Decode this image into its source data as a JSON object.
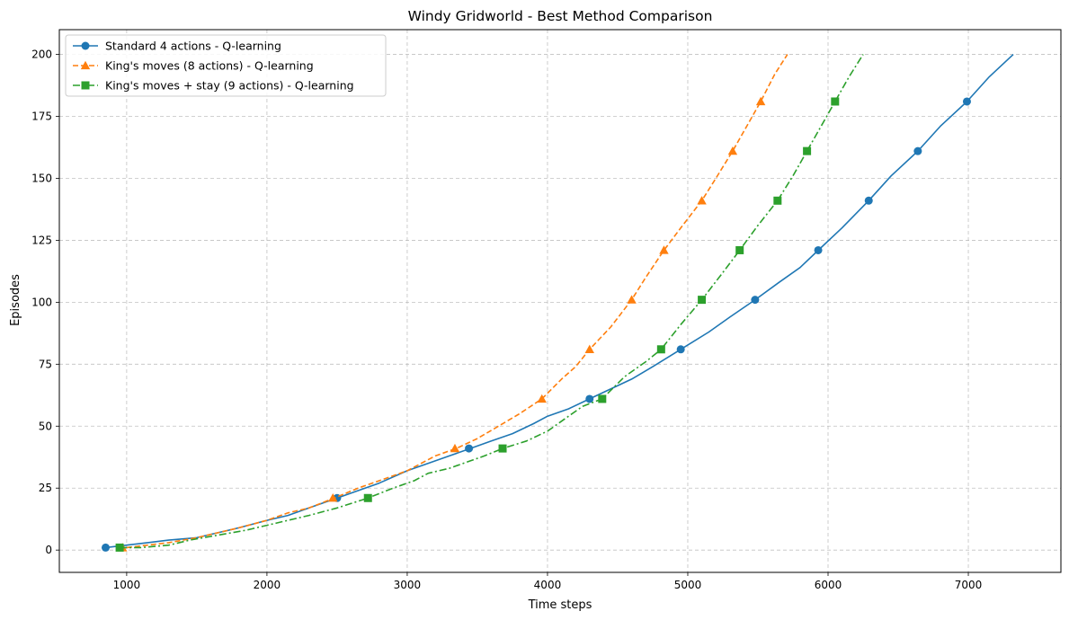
{
  "chart_data": {
    "type": "line",
    "title": "Windy Gridworld - Best Method Comparison",
    "xlabel": "Time steps",
    "ylabel": "Episodes",
    "xlim": [
      520,
      7660
    ],
    "ylim": [
      -9,
      210
    ],
    "xticks": [
      1000,
      2000,
      3000,
      4000,
      5000,
      6000,
      7000
    ],
    "yticks": [
      0,
      25,
      50,
      75,
      100,
      125,
      150,
      175,
      200
    ],
    "grid": true,
    "grid_style": "dashed",
    "legend_position": "top-left",
    "series": [
      {
        "name": "Standard 4 actions - Q-learning",
        "color": "#1f77b4",
        "linestyle": "solid",
        "marker": "circle",
        "x": [
          850,
          1000,
          1150,
          1300,
          1500,
          1650,
          1800,
          2000,
          2150,
          2300,
          2500,
          2650,
          2800,
          3000,
          3150,
          3300,
          3450,
          3600,
          3750,
          3900,
          4000,
          4150,
          4300,
          4450,
          4600,
          4750,
          4950,
          5150,
          5300,
          5480,
          5650,
          5800,
          5930,
          6100,
          6290,
          6450,
          6640,
          6800,
          6990,
          7150,
          7320
        ],
        "y": [
          1,
          2,
          3,
          4,
          5,
          7,
          9,
          12,
          14,
          17,
          21,
          24,
          27,
          32,
          35,
          38,
          41,
          44,
          47,
          51,
          54,
          57,
          61,
          65,
          69,
          74,
          81,
          88,
          94,
          101,
          108,
          114,
          121,
          130,
          141,
          151,
          161,
          171,
          181,
          191,
          200
        ],
        "marker_points": [
          [
            850,
            1
          ],
          [
            2500,
            21
          ],
          [
            3440,
            41
          ],
          [
            4300,
            61
          ],
          [
            4950,
            81
          ],
          [
            5480,
            101
          ],
          [
            5930,
            121
          ],
          [
            6290,
            141
          ],
          [
            6640,
            161
          ],
          [
            6990,
            181
          ]
        ]
      },
      {
        "name": "King's moves (8 actions) - Q-learning",
        "color": "#ff7f0e",
        "linestyle": "dashed",
        "marker": "triangle",
        "x": [
          1000,
          1150,
          1300,
          1500,
          1650,
          1800,
          2000,
          2150,
          2300,
          2480,
          2650,
          2800,
          3000,
          3200,
          3350,
          3500,
          3650,
          3800,
          3960,
          4100,
          4200,
          4300,
          4450,
          4600,
          4700,
          4830,
          4950,
          5100,
          5200,
          5320,
          5420,
          5520,
          5620,
          5710
        ],
        "y": [
          1,
          2,
          3,
          5,
          7,
          9,
          12,
          15,
          17,
          21,
          25,
          28,
          32,
          38,
          41,
          45,
          50,
          55,
          61,
          69,
          74,
          81,
          90,
          101,
          110,
          121,
          130,
          141,
          150,
          161,
          171,
          181,
          192,
          200
        ],
        "marker_points": [
          [
            970,
            1
          ],
          [
            2470,
            21
          ],
          [
            3340,
            41
          ],
          [
            3960,
            61
          ],
          [
            4300,
            81
          ],
          [
            4600,
            101
          ],
          [
            4830,
            121
          ],
          [
            5100,
            141
          ],
          [
            5320,
            161
          ],
          [
            5520,
            181
          ]
        ]
      },
      {
        "name": "King's moves + stay (9 actions) - Q-learning",
        "color": "#2ca02c",
        "linestyle": "dashdot",
        "marker": "square",
        "x": [
          950,
          1100,
          1300,
          1450,
          1650,
          1850,
          2000,
          2150,
          2300,
          2500,
          2720,
          2900,
          3050,
          3150,
          3300,
          3450,
          3550,
          3680,
          3850,
          4000,
          4150,
          4250,
          4390,
          4550,
          4700,
          4810,
          4950,
          5100,
          5250,
          5370,
          5500,
          5640,
          5750,
          5850,
          5950,
          6050,
          6150,
          6250
        ],
        "y": [
          1,
          1,
          2,
          4,
          6,
          8,
          10,
          12,
          14,
          17,
          21,
          25,
          28,
          31,
          33,
          36,
          38,
          41,
          44,
          48,
          54,
          58,
          61,
          70,
          76,
          81,
          91,
          101,
          112,
          121,
          131,
          141,
          151,
          161,
          171,
          181,
          191,
          200
        ],
        "marker_points": [
          [
            950,
            1
          ],
          [
            2720,
            21
          ],
          [
            3680,
            41
          ],
          [
            4390,
            61
          ],
          [
            4810,
            81
          ],
          [
            5100,
            101
          ],
          [
            5370,
            121
          ],
          [
            5640,
            141
          ],
          [
            5850,
            161
          ],
          [
            6050,
            181
          ]
        ]
      }
    ]
  }
}
